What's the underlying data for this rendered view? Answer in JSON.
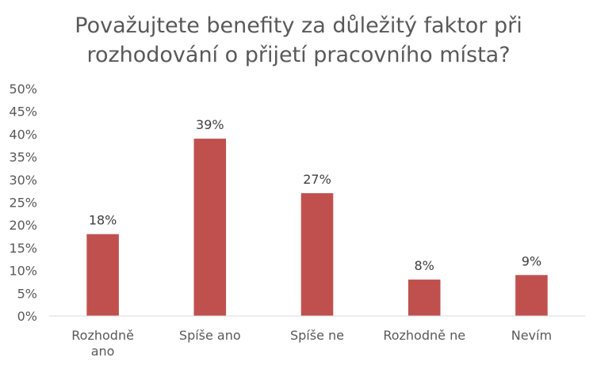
{
  "chart_data": {
    "type": "bar",
    "title_lines": [
      "Považujtete benefity za důležitý faktor při",
      "rozhodování o přijetí pracovního místa?"
    ],
    "categories": [
      [
        "Rozhodně",
        "ano"
      ],
      [
        "Spíše ano"
      ],
      [
        "Spíše ne"
      ],
      [
        "Rozhodně ne"
      ],
      [
        "Nevím"
      ]
    ],
    "values": [
      0.18,
      0.39,
      0.27,
      0.08,
      0.09
    ],
    "data_labels": [
      "18%",
      "39%",
      "27%",
      "8%",
      "9%"
    ],
    "ylim": [
      0,
      0.5
    ],
    "yticks": [
      "0%",
      "5%",
      "10%",
      "15%",
      "20%",
      "25%",
      "30%",
      "35%",
      "40%",
      "45%",
      "50%"
    ],
    "bar_color": "#c0504d",
    "axis_color": "#d9d9d9",
    "grid": false
  }
}
